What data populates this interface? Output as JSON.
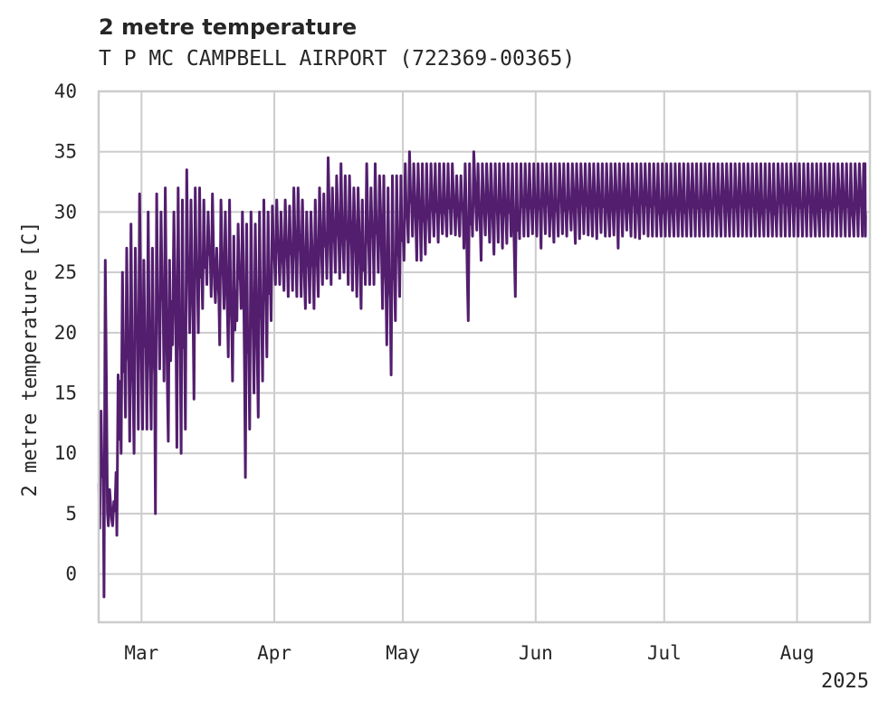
{
  "chart_data": {
    "type": "line",
    "title": "2 metre temperature",
    "subtitle": "T P MC CAMPBELL AIRPORT (722369-00365)",
    "ylabel": "2 metre temperature [C]",
    "xlabel": "",
    "ylim": [
      -4,
      40
    ],
    "yticks": [
      0,
      5,
      10,
      15,
      20,
      25,
      30,
      35,
      40
    ],
    "x_start": "2025-02-19",
    "x_end": "2025-08-18",
    "xticks": [
      {
        "date": "2025-03-01",
        "label": "Mar"
      },
      {
        "date": "2025-04-01",
        "label": "Apr"
      },
      {
        "date": "2025-05-01",
        "label": "May"
      },
      {
        "date": "2025-06-01",
        "label": "Jun"
      },
      {
        "date": "2025-07-01",
        "label": "Jul"
      },
      {
        "date": "2025-08-01",
        "label": "Aug"
      }
    ],
    "year_label": "2025",
    "grid": true,
    "series": [
      {
        "color": "#531e6e",
        "x": [
          "2025-02-19",
          "2025-02-20",
          "2025-02-21",
          "2025-02-22",
          "2025-02-23",
          "2025-02-24",
          "2025-02-25",
          "2025-02-26",
          "2025-02-27",
          "2025-02-28",
          "2025-03-01",
          "2025-03-02",
          "2025-03-03",
          "2025-03-04",
          "2025-03-05",
          "2025-03-06",
          "2025-03-07",
          "2025-03-08",
          "2025-03-09",
          "2025-03-10",
          "2025-03-11",
          "2025-03-12",
          "2025-03-13",
          "2025-03-14",
          "2025-03-15",
          "2025-03-16",
          "2025-03-17",
          "2025-03-18",
          "2025-03-19",
          "2025-03-20",
          "2025-03-21",
          "2025-03-22",
          "2025-03-23",
          "2025-03-24",
          "2025-03-25",
          "2025-03-26",
          "2025-03-27",
          "2025-03-28",
          "2025-03-29",
          "2025-03-30",
          "2025-03-31",
          "2025-04-01",
          "2025-04-02",
          "2025-04-03",
          "2025-04-04",
          "2025-04-05",
          "2025-04-06",
          "2025-04-07",
          "2025-04-08",
          "2025-04-09",
          "2025-04-10",
          "2025-04-11",
          "2025-04-12",
          "2025-04-13",
          "2025-04-14",
          "2025-04-15",
          "2025-04-16",
          "2025-04-17",
          "2025-04-18",
          "2025-04-19",
          "2025-04-20",
          "2025-04-21",
          "2025-04-22",
          "2025-04-23",
          "2025-04-24",
          "2025-04-25",
          "2025-04-26",
          "2025-04-27",
          "2025-04-28",
          "2025-04-29",
          "2025-04-30",
          "2025-05-01",
          "2025-05-02",
          "2025-05-03",
          "2025-05-04",
          "2025-05-05",
          "2025-05-06",
          "2025-05-07",
          "2025-05-08",
          "2025-05-09",
          "2025-05-10",
          "2025-05-11",
          "2025-05-12",
          "2025-05-13",
          "2025-05-14",
          "2025-05-15",
          "2025-05-16",
          "2025-05-17",
          "2025-05-18",
          "2025-05-19",
          "2025-05-20",
          "2025-05-21",
          "2025-05-22",
          "2025-05-23",
          "2025-05-24",
          "2025-05-25",
          "2025-05-26",
          "2025-05-27",
          "2025-05-28",
          "2025-05-29",
          "2025-05-30",
          "2025-05-31",
          "2025-06-01",
          "2025-06-02",
          "2025-06-03",
          "2025-06-04",
          "2025-06-05",
          "2025-06-06",
          "2025-06-07",
          "2025-06-08",
          "2025-06-09",
          "2025-06-10",
          "2025-06-11",
          "2025-06-12",
          "2025-06-13",
          "2025-06-14",
          "2025-06-15",
          "2025-06-16",
          "2025-06-17",
          "2025-06-18",
          "2025-06-19",
          "2025-06-20",
          "2025-06-21",
          "2025-06-22",
          "2025-06-23",
          "2025-06-24",
          "2025-06-25",
          "2025-06-26",
          "2025-06-27",
          "2025-06-28",
          "2025-06-29",
          "2025-06-30",
          "2025-07-01",
          "2025-07-02",
          "2025-07-03",
          "2025-07-04",
          "2025-07-05",
          "2025-07-06",
          "2025-07-07",
          "2025-07-08",
          "2025-07-09",
          "2025-07-10",
          "2025-07-11",
          "2025-07-12",
          "2025-07-13",
          "2025-07-14",
          "2025-07-15",
          "2025-07-16",
          "2025-07-17",
          "2025-07-18",
          "2025-07-19",
          "2025-07-20",
          "2025-07-21",
          "2025-07-22",
          "2025-07-23",
          "2025-07-24",
          "2025-07-25",
          "2025-07-26",
          "2025-07-27",
          "2025-07-28",
          "2025-07-29",
          "2025-07-30",
          "2025-07-31",
          "2025-08-01",
          "2025-08-02",
          "2025-08-03",
          "2025-08-04",
          "2025-08-05",
          "2025-08-06",
          "2025-08-07",
          "2025-08-08",
          "2025-08-09",
          "2025-08-10",
          "2025-08-11",
          "2025-08-12",
          "2025-08-13",
          "2025-08-14",
          "2025-08-15",
          "2025-08-16",
          "2025-08-17"
        ],
        "min": [
          3.8,
          -1.9,
          4,
          4,
          3.2,
          10,
          13,
          11,
          10,
          12,
          12,
          12,
          12,
          5,
          17,
          16,
          11,
          19,
          10.5,
          10,
          12,
          20,
          14.5,
          20,
          22,
          24,
          23,
          22.5,
          19,
          22,
          18,
          16,
          21,
          22,
          8,
          12,
          15,
          13,
          16,
          18,
          21,
          24,
          24,
          23.5,
          23,
          23.5,
          23,
          23,
          22,
          22.5,
          22,
          23,
          24,
          24.5,
          24,
          25,
          24.5,
          25,
          24,
          23.5,
          23,
          22,
          24,
          24,
          24,
          25,
          22,
          19,
          16.5,
          21,
          23,
          26,
          27.5,
          28,
          26,
          26,
          26.5,
          27.5,
          28,
          27.5,
          28.2,
          28,
          28.2,
          28.1,
          28,
          27,
          21,
          28,
          28.5,
          26,
          28.1,
          27.5,
          26.5,
          27.5,
          27,
          27.4,
          28,
          23,
          27.8,
          28,
          28,
          28.2,
          28,
          27,
          28.2,
          28,
          27.5,
          28,
          28.2,
          28,
          28.5,
          27.4,
          27.8,
          28.2,
          28.1,
          28,
          27.8,
          28.3,
          28,
          28,
          28.1,
          27,
          28,
          28.5,
          28,
          27.9,
          27.8,
          28.2,
          28,
          28,
          28,
          28,
          28,
          28,
          28,
          28,
          28,
          28,
          28,
          28,
          28,
          28,
          28,
          28,
          28,
          28,
          28,
          28,
          28,
          28,
          28,
          28,
          28,
          28,
          28,
          28,
          28,
          28,
          28,
          28,
          28,
          28,
          28,
          28,
          28,
          28,
          28,
          28,
          28,
          28,
          28,
          28,
          28,
          28,
          28,
          28,
          28,
          28,
          28,
          28,
          28,
          28,
          28,
          28,
          28,
          28,
          28
        ],
        "max": [
          13.5,
          26,
          7,
          6,
          16.5,
          25,
          27,
          29,
          27,
          31.5,
          26,
          30,
          27,
          31.5,
          30,
          32,
          26,
          30,
          32,
          31,
          33.5,
          31,
          32,
          32,
          31,
          30,
          31.5,
          27,
          31,
          30,
          31,
          28,
          29,
          30,
          29,
          30,
          29,
          30,
          31,
          30,
          30.5,
          31,
          30,
          31,
          30.5,
          32,
          32,
          31,
          30,
          30,
          31,
          32,
          31.5,
          34.5,
          32,
          33,
          34,
          33,
          33,
          32,
          32,
          31,
          34,
          32,
          34,
          33,
          33,
          32,
          33,
          33,
          33,
          34,
          35,
          34,
          34,
          34,
          34,
          34,
          34,
          34,
          34,
          34,
          34,
          33,
          33,
          34,
          34,
          35,
          34,
          34,
          34,
          34,
          34,
          34,
          34,
          34,
          34,
          34,
          34,
          34,
          34,
          34,
          34,
          34,
          34,
          34,
          34,
          34,
          34,
          34,
          34,
          34,
          34,
          34,
          34,
          34,
          34,
          34,
          34,
          34,
          34,
          34,
          34,
          34,
          34,
          34,
          34,
          34,
          34,
          34,
          34,
          34,
          34,
          34,
          34,
          34,
          34,
          34,
          34,
          34,
          34,
          34,
          34,
          34,
          34,
          34,
          34,
          34,
          34,
          34,
          34,
          34,
          34,
          34,
          34,
          34,
          34,
          34,
          34,
          34,
          34,
          34,
          34,
          34,
          34,
          34,
          34,
          34,
          34,
          34,
          34,
          34,
          34,
          34,
          34,
          34,
          34,
          34,
          34,
          34,
          34,
          34,
          34,
          34,
          34,
          34,
          34
        ]
      }
    ]
  }
}
